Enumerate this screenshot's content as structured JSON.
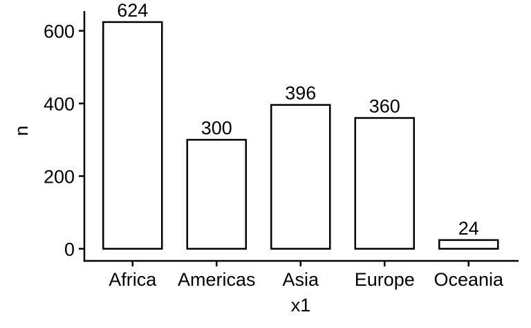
{
  "chart_data": {
    "type": "bar",
    "categories": [
      "Africa",
      "Americas",
      "Asia",
      "Europe",
      "Oceania"
    ],
    "values": [
      624,
      300,
      396,
      360,
      24
    ],
    "data_labels": [
      "624",
      "300",
      "396",
      "360",
      "24"
    ],
    "xlabel": "x1",
    "ylabel": "n",
    "ylim": [
      0,
      650
    ],
    "yticks": [
      0,
      200,
      400,
      600
    ],
    "ytick_labels": [
      "0",
      "200",
      "400",
      "600"
    ],
    "grid": false,
    "legend": "none",
    "bar_fill": "#ffffff",
    "bar_stroke": "#000000"
  }
}
